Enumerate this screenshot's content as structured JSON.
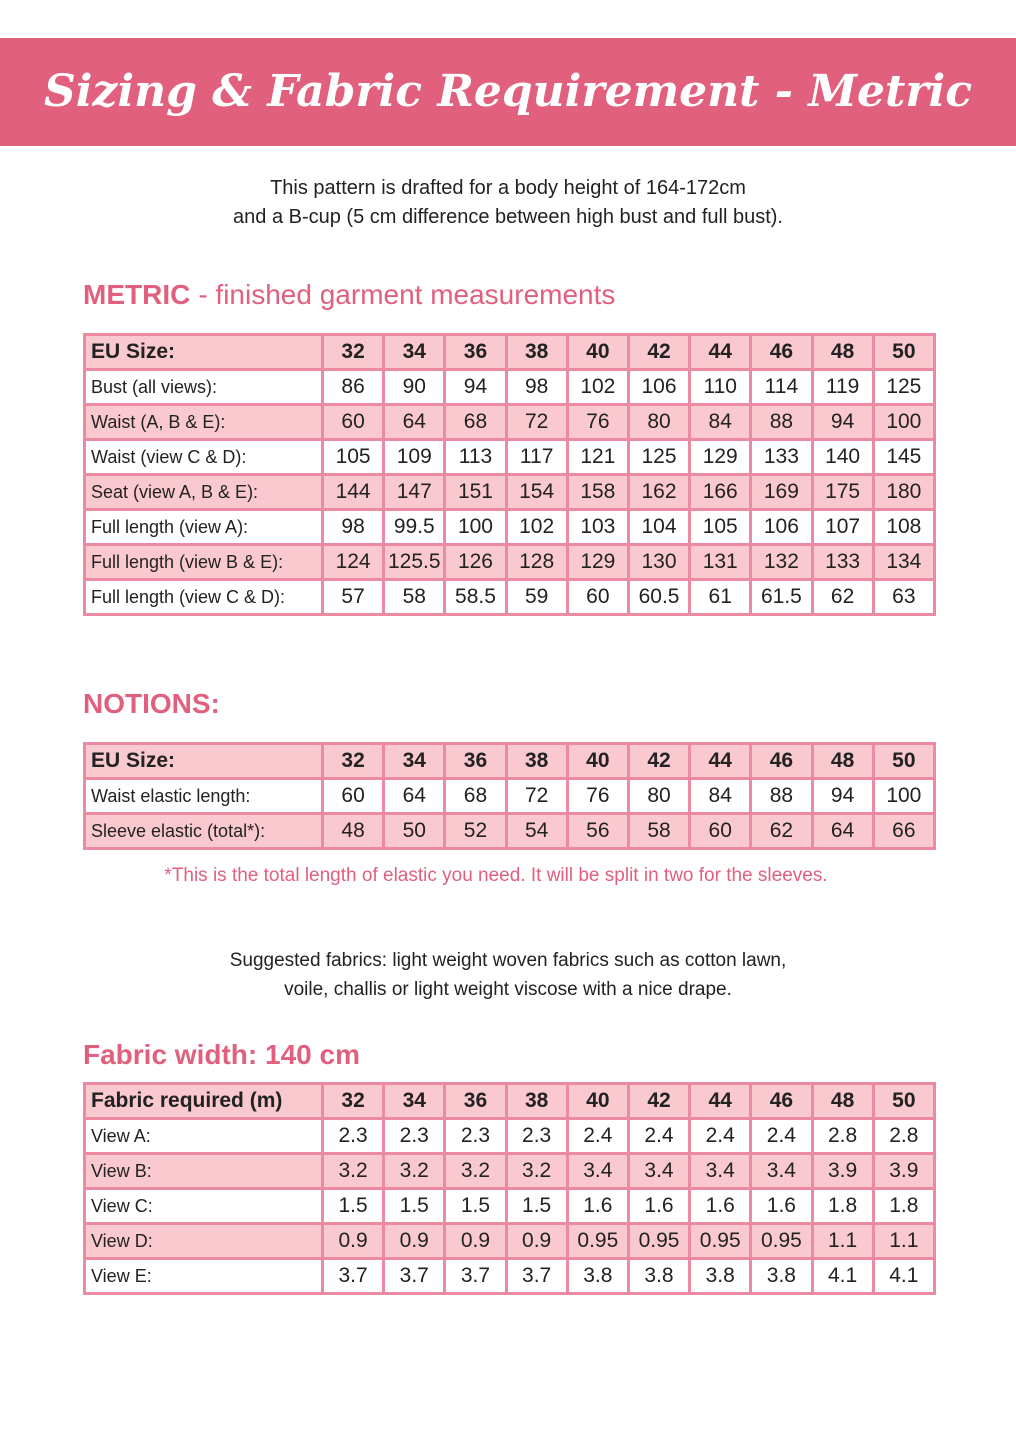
{
  "title": "Sizing & Fabric Requirement - Metric",
  "intro": [
    "This pattern is drafted for a body height of 164-172cm",
    "and a B-cup (5 cm difference between high bust and full bust)."
  ],
  "metric": {
    "heading_bold": "METRIC",
    "heading_rest": "- finished garment measurements",
    "table": {
      "header": [
        "EU Size:",
        32,
        34,
        36,
        38,
        40,
        42,
        44,
        46,
        48,
        50
      ],
      "rows": [
        [
          "Bust (all views):",
          86,
          90,
          94,
          98,
          102,
          106,
          110,
          114,
          119,
          125
        ],
        [
          "Waist (A, B & E):",
          60,
          64,
          68,
          72,
          76,
          80,
          84,
          88,
          94,
          100
        ],
        [
          "Waist (view C & D):",
          105,
          109,
          113,
          117,
          121,
          125,
          129,
          133,
          140,
          145
        ],
        [
          "Seat (view A, B & E):",
          144,
          147,
          151,
          154,
          158,
          162,
          166,
          169,
          175,
          180
        ],
        [
          "Full length (view A):",
          98,
          99.5,
          100,
          102,
          103,
          104,
          105,
          106,
          107,
          108
        ],
        [
          "Full length (view B & E):",
          124,
          125.5,
          126,
          128,
          129,
          130,
          131,
          132,
          133,
          134
        ],
        [
          "Full length (view C & D):",
          57,
          58,
          58.5,
          59,
          60,
          60.5,
          61,
          61.5,
          62,
          63
        ]
      ]
    }
  },
  "notions": {
    "heading": "NOTIONS:",
    "table": {
      "header": [
        "EU Size:",
        32,
        34,
        36,
        38,
        40,
        42,
        44,
        46,
        48,
        50
      ],
      "rows": [
        [
          "Waist elastic length:",
          60,
          64,
          68,
          72,
          76,
          80,
          84,
          88,
          94,
          100
        ],
        [
          "Sleeve elastic (total*):",
          48,
          50,
          52,
          54,
          56,
          58,
          60,
          62,
          64,
          66
        ]
      ]
    },
    "footnote": "*This is the total length of elastic you need. It will be split in two for the sleeves."
  },
  "fabrics": {
    "suggested": [
      "Suggested fabrics: light weight woven fabrics such as cotton lawn,",
      "voile, challis or light weight viscose with a nice drape."
    ],
    "heading": "Fabric width: 140 cm",
    "table": {
      "header": [
        "Fabric required (m)",
        32,
        34,
        36,
        38,
        40,
        42,
        44,
        46,
        48,
        50
      ],
      "rows": [
        [
          "View A:",
          2.3,
          2.3,
          2.3,
          2.3,
          2.4,
          2.4,
          2.4,
          2.4,
          2.8,
          2.8
        ],
        [
          "View B:",
          3.2,
          3.2,
          3.2,
          3.2,
          3.4,
          3.4,
          3.4,
          3.4,
          3.9,
          3.9
        ],
        [
          "View C:",
          1.5,
          1.5,
          1.5,
          1.5,
          1.6,
          1.6,
          1.6,
          1.6,
          1.8,
          1.8
        ],
        [
          "View D:",
          0.9,
          0.9,
          0.9,
          0.9,
          0.95,
          0.95,
          0.95,
          0.95,
          1.1,
          1.1
        ],
        [
          "View E:",
          3.7,
          3.7,
          3.7,
          3.7,
          3.8,
          3.8,
          3.8,
          3.8,
          4.1,
          4.1
        ]
      ]
    }
  }
}
